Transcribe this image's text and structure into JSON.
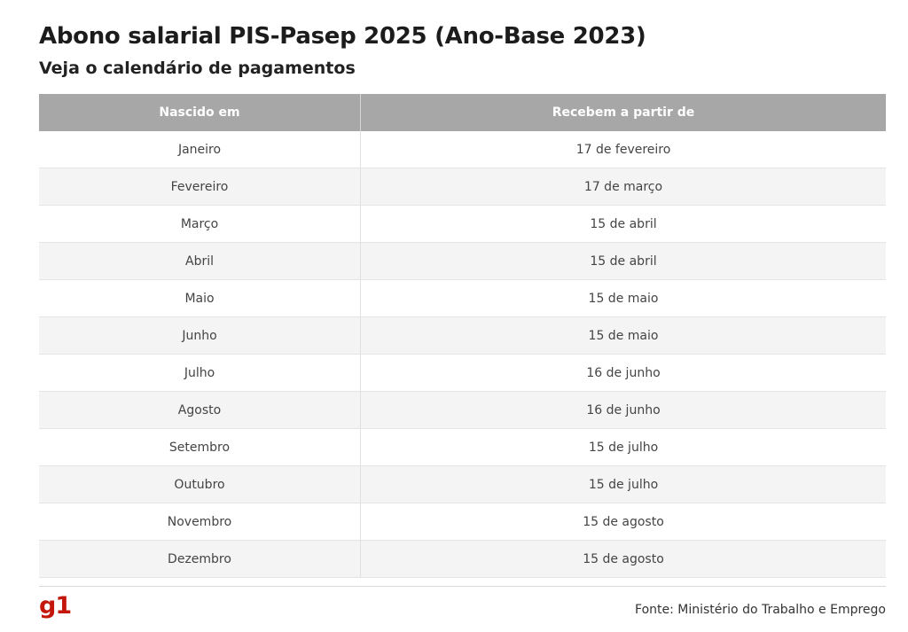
{
  "title": "Abono salarial PIS-Pasep 2025 (Ano-Base 2023)",
  "subtitle": "Veja o calendário de pagamentos",
  "table": {
    "headers": [
      "Nascido em",
      "Recebem a partir de"
    ],
    "rows": [
      [
        "Janeiro",
        "17 de fevereiro"
      ],
      [
        "Fevereiro",
        "17 de março"
      ],
      [
        "Março",
        "15 de abril"
      ],
      [
        "Abril",
        "15 de abril"
      ],
      [
        "Maio",
        "15 de maio"
      ],
      [
        "Junho",
        "15 de maio"
      ],
      [
        "Julho",
        "16 de junho"
      ],
      [
        "Agosto",
        "16 de junho"
      ],
      [
        "Setembro",
        "15 de julho"
      ],
      [
        "Outubro",
        "15 de julho"
      ],
      [
        "Novembro",
        "15 de agosto"
      ],
      [
        "Dezembro",
        "15 de agosto"
      ]
    ]
  },
  "footer": {
    "logo": "g1",
    "source": "Fonte: Ministério do Trabalho e Emprego"
  },
  "colors": {
    "header_bg": "#a7a7a7",
    "stripe_bg": "#f4f4f4",
    "logo": "#c4170c"
  }
}
